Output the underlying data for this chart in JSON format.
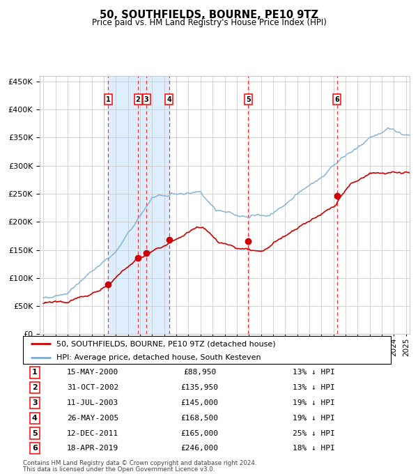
{
  "title": "50, SOUTHFIELDS, BOURNE, PE10 9TZ",
  "subtitle": "Price paid vs. HM Land Registry's House Price Index (HPI)",
  "footer1": "Contains HM Land Registry data © Crown copyright and database right 2024.",
  "footer2": "This data is licensed under the Open Government Licence v3.0.",
  "legend_red": "50, SOUTHFIELDS, BOURNE, PE10 9TZ (detached house)",
  "legend_blue": "HPI: Average price, detached house, South Kesteven",
  "purchases": [
    {
      "num": 1,
      "date": "15-MAY-2000",
      "price": 88950,
      "pct": "13%",
      "year_x": 2000.37
    },
    {
      "num": 2,
      "date": "31-OCT-2002",
      "price": 135950,
      "pct": "13%",
      "year_x": 2002.83
    },
    {
      "num": 3,
      "date": "11-JUL-2003",
      "price": 145000,
      "pct": "19%",
      "year_x": 2003.53
    },
    {
      "num": 4,
      "date": "26-MAY-2005",
      "price": 168500,
      "pct": "19%",
      "year_x": 2005.4
    },
    {
      "num": 5,
      "date": "12-DEC-2011",
      "price": 165000,
      "pct": "25%",
      "year_x": 2011.95
    },
    {
      "num": 6,
      "date": "18-APR-2019",
      "price": 246000,
      "pct": "18%",
      "year_x": 2019.29
    }
  ],
  "table_rows": [
    {
      "num": "1",
      "date": "15-MAY-2000",
      "price": "£88,950",
      "pct": "13% ↓ HPI"
    },
    {
      "num": "2",
      "date": "31-OCT-2002",
      "price": "£135,950",
      "pct": "13% ↓ HPI"
    },
    {
      "num": "3",
      "date": "11-JUL-2003",
      "price": "£145,000",
      "pct": "19% ↓ HPI"
    },
    {
      "num": "4",
      "date": "26-MAY-2005",
      "price": "£168,500",
      "pct": "19% ↓ HPI"
    },
    {
      "num": "5",
      "date": "12-DEC-2011",
      "price": "£165,000",
      "pct": "25% ↓ HPI"
    },
    {
      "num": "6",
      "date": "18-APR-2019",
      "price": "£246,000",
      "pct": "18% ↓ HPI"
    }
  ],
  "ylim": [
    0,
    460000
  ],
  "xlim_start": 1994.7,
  "xlim_end": 2025.3,
  "shade_region": [
    2000.37,
    2005.4
  ],
  "bg_color": "#ddeeff",
  "plot_bg": "#ffffff",
  "grid_color": "#cccccc",
  "red_color": "#cc0000",
  "blue_color": "#7aadd4",
  "dashed_color": "#ff3333"
}
